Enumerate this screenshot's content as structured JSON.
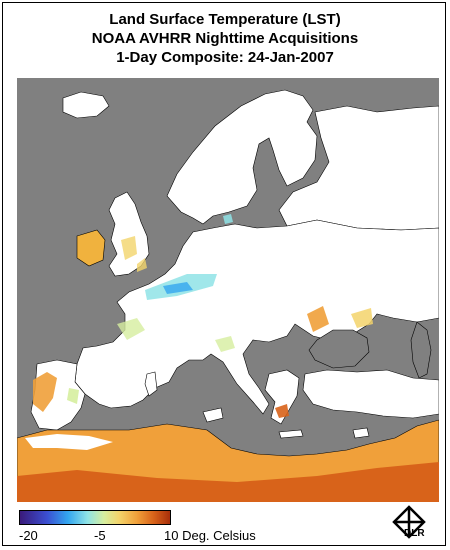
{
  "title": {
    "line1": "Land Surface Temperature (LST)",
    "line2": "NOAA AVHRR Nighttime Acquisitions",
    "line3": "1-Day Composite: 24-Jan-2007"
  },
  "colors": {
    "sea": "#808080",
    "no_data_land": "#ffffff",
    "coastline": "#000000",
    "cold": "#3a1a7a",
    "cool": "#33a6ef",
    "mild": "#d6ee9f",
    "warm": "#f0a03a",
    "hot": "#a82f0b"
  },
  "legend": {
    "min_label": "-20",
    "mid_label": "-5",
    "max_label": "10 Deg. Celsius",
    "range": [
      -20,
      10
    ]
  },
  "logo": {
    "icon": "dlr-logo-icon",
    "text": "DLR"
  }
}
